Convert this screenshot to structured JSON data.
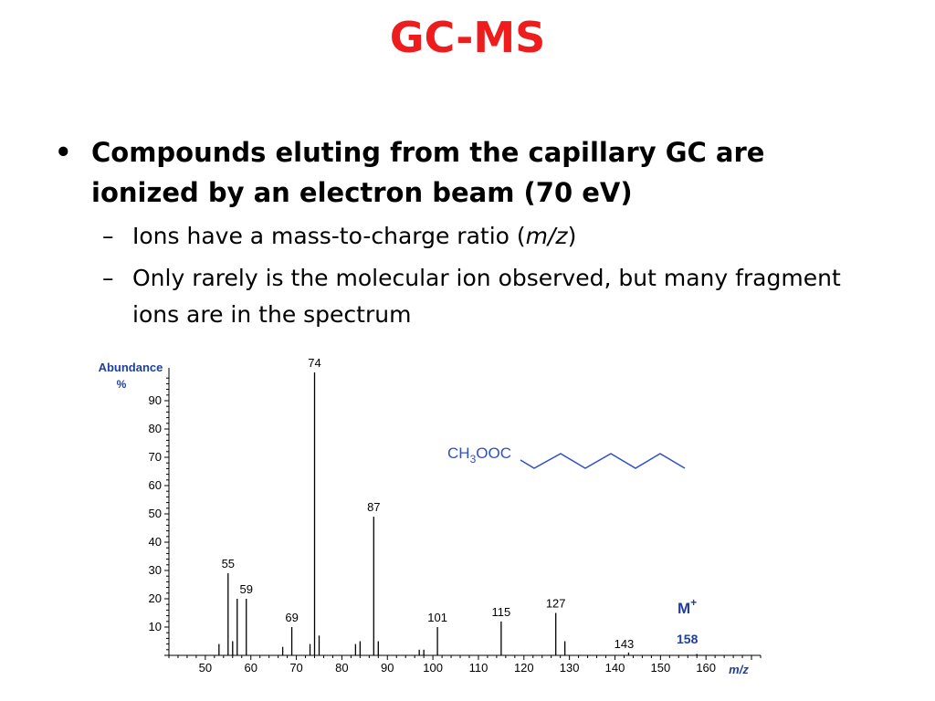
{
  "slide": {
    "title": "GC-MS",
    "bullet_main": "Compounds eluting from the capillary GC are ionized by an electron beam (70 eV)",
    "sub_bullets": [
      {
        "pre": "Ions have a mass-to-charge ratio (",
        "em": "m/z",
        "post": ")"
      },
      {
        "text": "Only rarely is the molecular ion observed, but many fragment ions are in the spectrum"
      }
    ]
  },
  "chart_data": {
    "type": "bar",
    "ylabel_line1": "Abundance",
    "ylabel_line2": "%",
    "xlabel": "m/z",
    "xlim": [
      42,
      172
    ],
    "ylim": [
      0,
      100
    ],
    "x_ticks": [
      50,
      60,
      70,
      80,
      90,
      100,
      110,
      120,
      130,
      140,
      150,
      160
    ],
    "y_ticks": [
      10,
      20,
      30,
      40,
      50,
      60,
      70,
      80,
      90
    ],
    "peaks": [
      {
        "mz": 53,
        "abundance": 4
      },
      {
        "mz": 55,
        "abundance": 29,
        "label": "55"
      },
      {
        "mz": 56,
        "abundance": 5
      },
      {
        "mz": 57,
        "abundance": 20
      },
      {
        "mz": 59,
        "abundance": 20,
        "label": "59"
      },
      {
        "mz": 67,
        "abundance": 3
      },
      {
        "mz": 69,
        "abundance": 10,
        "label": "69"
      },
      {
        "mz": 73,
        "abundance": 4
      },
      {
        "mz": 74,
        "abundance": 100,
        "label": "74"
      },
      {
        "mz": 75,
        "abundance": 7
      },
      {
        "mz": 83,
        "abundance": 4
      },
      {
        "mz": 84,
        "abundance": 5
      },
      {
        "mz": 87,
        "abundance": 49,
        "label": "87"
      },
      {
        "mz": 88,
        "abundance": 5
      },
      {
        "mz": 97,
        "abundance": 2
      },
      {
        "mz": 98,
        "abundance": 2
      },
      {
        "mz": 101,
        "abundance": 10,
        "label": "101"
      },
      {
        "mz": 115,
        "abundance": 12,
        "label": "115"
      },
      {
        "mz": 127,
        "abundance": 15,
        "label": "127"
      },
      {
        "mz": 129,
        "abundance": 5
      },
      {
        "mz": 143,
        "abundance": 1,
        "label": "143"
      },
      {
        "mz": 158,
        "abundance": 0.5
      }
    ],
    "molecular_ion": {
      "symbol": "M",
      "charge": "+",
      "mz": "158"
    },
    "structure": {
      "prefix": "CH",
      "sub": "3",
      "suffix": "OOC"
    },
    "colors": {
      "axis_label": "#1f3f9f",
      "structure": "#3050c8",
      "title": "#ee1c1c",
      "molecular_ion": "#1f3fa0"
    }
  }
}
